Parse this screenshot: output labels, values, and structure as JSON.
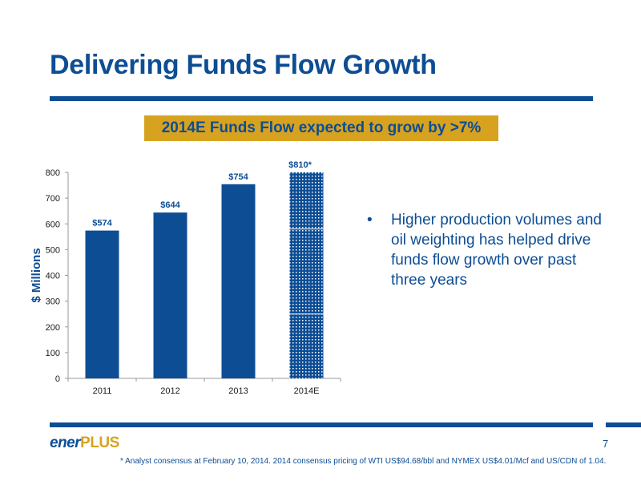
{
  "slide": {
    "title": "Delivering Funds Flow Growth",
    "callout": "2014E Funds Flow expected to grow by >7%",
    "bullet": "Higher production volumes and oil weighting has helped drive funds flow growth over past three years",
    "bullet_marker": "•",
    "logo_part1": "ener",
    "logo_part2": "PLUS",
    "page_number": "7",
    "footnote": "* Analyst consensus at February 10, 2014. 2014 consensus pricing of  WTI US$94.68/bbl and NYMEX US$4.01/Mcf and US/CDN of 1.04."
  },
  "colors": {
    "brand_blue": "#0d4d94",
    "brand_gold": "#d7a21f"
  },
  "chart_data": {
    "type": "bar",
    "ylabel": "$ Millions",
    "xlabel": "",
    "ylim": [
      0,
      800
    ],
    "yticks": [
      0,
      100,
      200,
      300,
      400,
      500,
      600,
      700,
      800
    ],
    "grid": false,
    "categories": [
      "2011",
      "2012",
      "2013",
      "2014E"
    ],
    "values": [
      574,
      644,
      754,
      810
    ],
    "data_labels": [
      "$574",
      "$644",
      "$754",
      "$810*"
    ],
    "estimated": [
      false,
      false,
      false,
      true
    ]
  }
}
